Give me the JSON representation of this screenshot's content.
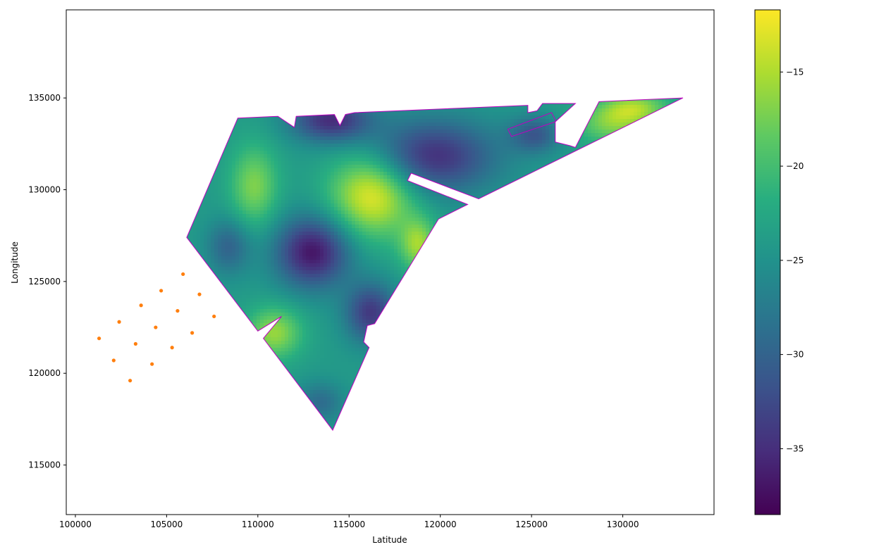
{
  "chart_data": {
    "type": "heatmap",
    "title": "",
    "xlabel": "Latitude",
    "ylabel": "Longitude",
    "xlim": [
      99500,
      135000
    ],
    "ylim": [
      112300,
      139800
    ],
    "xticks": [
      100000,
      105000,
      110000,
      115000,
      120000,
      125000,
      130000
    ],
    "yticks": [
      115000,
      120000,
      125000,
      130000,
      135000
    ],
    "grid": false,
    "colormap": "viridis",
    "colorbar": {
      "range": [
        -38.5,
        -11.7
      ],
      "ticks": [
        -35,
        -30,
        -25,
        -20,
        -15
      ]
    },
    "boundary_color": "#c000c0",
    "outline": [
      [
        108900,
        133900
      ],
      [
        111100,
        134000
      ],
      [
        112000,
        133400
      ],
      [
        112100,
        134000
      ],
      [
        114200,
        134100
      ],
      [
        114500,
        133500
      ],
      [
        114800,
        134100
      ],
      [
        115300,
        134200
      ],
      [
        124800,
        134600
      ],
      [
        124800,
        134200
      ],
      [
        125300,
        134300
      ],
      [
        125600,
        134700
      ],
      [
        127400,
        134700
      ],
      [
        126300,
        133700
      ],
      [
        123900,
        132900
      ],
      [
        123700,
        133300
      ],
      [
        126100,
        134200
      ],
      [
        126300,
        133800
      ],
      [
        126300,
        132600
      ],
      [
        127100,
        132400
      ],
      [
        127400,
        132300
      ],
      [
        128700,
        134800
      ],
      [
        133300,
        135000
      ],
      [
        122100,
        129500
      ],
      [
        118400,
        130900
      ],
      [
        118200,
        130500
      ],
      [
        121500,
        129200
      ],
      [
        119900,
        128400
      ],
      [
        116400,
        122700
      ],
      [
        116000,
        122600
      ],
      [
        115800,
        121700
      ],
      [
        116100,
        121400
      ],
      [
        114100,
        116900
      ],
      [
        110300,
        121900
      ],
      [
        111300,
        123100
      ],
      [
        110000,
        122300
      ],
      [
        106100,
        127400
      ]
    ],
    "orange_points": [
      [
        101300,
        121900
      ],
      [
        102100,
        120700
      ],
      [
        103000,
        119600
      ],
      [
        102400,
        122800
      ],
      [
        103300,
        121600
      ],
      [
        104200,
        120500
      ],
      [
        103600,
        123700
      ],
      [
        104400,
        122500
      ],
      [
        105300,
        121400
      ],
      [
        104700,
        124500
      ],
      [
        105600,
        123400
      ],
      [
        106400,
        122200
      ],
      [
        105900,
        125400
      ],
      [
        106800,
        124300
      ],
      [
        107600,
        123100
      ]
    ],
    "orange_color": "#ff7f0e",
    "field": {
      "base": -24,
      "bumps": [
        [
          116300,
          129800,
          12,
          2300,
          2300
        ],
        [
          113000,
          126600,
          -13,
          2000,
          1900
        ],
        [
          119500,
          131800,
          -11,
          3500,
          2000
        ],
        [
          114000,
          133800,
          -11,
          2200,
          1200
        ],
        [
          109800,
          130200,
          7,
          1300,
          2200
        ],
        [
          110900,
          122200,
          8,
          1500,
          1400
        ],
        [
          116200,
          123300,
          -10,
          1400,
          1600
        ],
        [
          129500,
          133600,
          7,
          2100,
          1100
        ],
        [
          130700,
          134500,
          7,
          1800,
          800
        ],
        [
          125200,
          133000,
          -7,
          1400,
          1000
        ],
        [
          118800,
          127000,
          8,
          1000,
          1400
        ],
        [
          108400,
          126900,
          -6,
          1200,
          1500
        ],
        [
          113400,
          118400,
          -5,
          1300,
          1100
        ]
      ]
    }
  }
}
